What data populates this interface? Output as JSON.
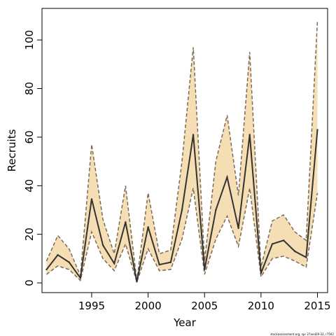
{
  "chart_data": {
    "type": "line",
    "xlabel": "Year",
    "ylabel": "Recruits",
    "xlim": [
      1990.6,
      2015.9
    ],
    "ylim": [
      -4,
      113
    ],
    "xticks": [
      1995,
      2000,
      2005,
      2010,
      2015
    ],
    "yticks": [
      0,
      20,
      40,
      60,
      80,
      100
    ],
    "grid": false,
    "footnote": "stockassessment.org, spr 27and29-32, r7592",
    "colors": {
      "band": "#f5deb3",
      "band_edge": "#7a6a5a",
      "line": "#333333"
    },
    "series": [
      {
        "x": [
          1991,
          1992,
          1993,
          1994,
          1995,
          1996,
          1997,
          1998,
          1999,
          2000,
          2001,
          2002,
          2003,
          2004,
          2005,
          2006,
          2007,
          2008,
          2009,
          2010,
          2011,
          2012,
          2013,
          2014,
          2015
        ],
        "estimate": [
          5.5,
          11.5,
          8.5,
          2,
          34.5,
          15.5,
          8,
          25,
          0.5,
          23,
          7.5,
          8.5,
          30,
          61,
          5.5,
          30,
          43.5,
          22.5,
          61,
          4,
          16,
          17.5,
          13,
          10.5,
          63
        ],
        "lower": [
          3.5,
          7,
          5.5,
          1,
          21,
          10,
          5,
          16,
          0.3,
          14,
          5,
          5.5,
          18,
          39,
          3.5,
          18,
          27.5,
          15,
          39,
          2.5,
          10,
          11,
          9,
          6.5,
          37
        ],
        "upper": [
          9,
          19.5,
          14,
          3,
          57,
          26,
          12,
          40,
          1,
          37,
          12,
          13.5,
          50,
          97,
          9,
          50,
          69,
          36,
          95,
          6.5,
          25.5,
          28,
          21,
          17.5,
          108
        ]
      }
    ]
  }
}
